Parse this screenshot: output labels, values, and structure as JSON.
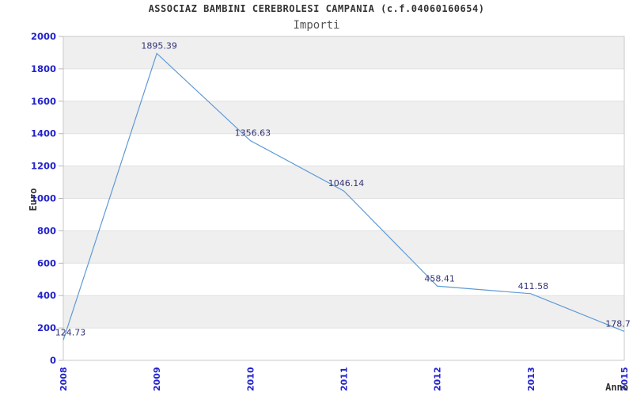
{
  "chart_data": {
    "type": "line",
    "title": "ASSOCIAZ BAMBINI CEREBROLESI CAMPANIA (c.f.04060160654)",
    "subtitle": "Importi",
    "xlabel": "Anno",
    "ylabel": "Euro",
    "categories": [
      "2008",
      "2009",
      "2010",
      "2011",
      "2012",
      "2013",
      "2015"
    ],
    "values": [
      124.73,
      1895.39,
      1356.63,
      1046.14,
      458.41,
      411.58,
      178.7
    ],
    "point_labels": [
      "124.73",
      "1895.39",
      "1356.63",
      "1046.14",
      "458.41",
      "411.58",
      "178.7"
    ],
    "ylim": [
      0,
      2000
    ],
    "ytick_step": 200,
    "grid": "horizontal-alternating-bands",
    "legend": "none",
    "colors": {
      "line": "#5e9ad6",
      "tick_label": "#2222cc",
      "point_label": "#333377",
      "band_gray": "#efefef",
      "band_white": "#ffffff",
      "gridline": "#e0e0e0",
      "plot_border": "#c9c9c9",
      "tick_mark": "#b8b8b8",
      "axis_title": "#333333",
      "title": "#333333",
      "subtitle": "#555555",
      "background": "#ffffff"
    }
  }
}
